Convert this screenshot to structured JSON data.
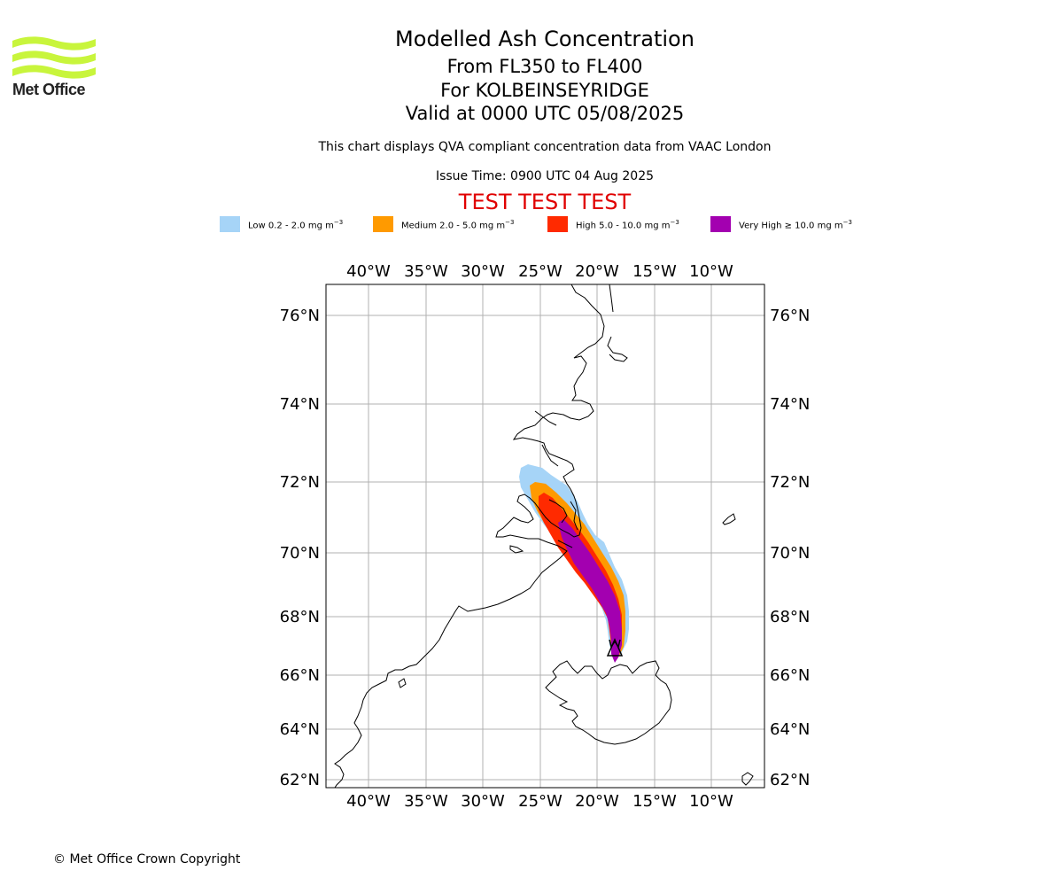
{
  "logo": {
    "text": "Met Office",
    "color": "#c8f53c"
  },
  "title": "Modelled Ash Concentration",
  "subtitle_levels": "From FL350 to FL400",
  "subtitle_location": "For KOLBEINSEYRIDGE",
  "subtitle_valid": "Valid at 0000 UTC 05/08/2025",
  "description": "This chart displays QVA compliant concentration data from VAAC London",
  "issue_time": "Issue Time: 0900 UTC 04 Aug 2025",
  "test_banner": "TEST TEST TEST",
  "legend": [
    {
      "prefix": "Low 0.2 - 2.0 mg m",
      "color": "#a6d4f7"
    },
    {
      "prefix": "Medium 2.0 - 5.0 mg m",
      "color": "#ff9a00"
    },
    {
      "prefix": "High 5.0 - 10.0 mg m",
      "color": "#ff2a00"
    },
    {
      "prefix": "Very High ≥ 10.0 mg m",
      "color": "#a300b0"
    }
  ],
  "legend_unit_exponent": "−3",
  "map": {
    "lon_ticks": [
      "40°W",
      "35°W",
      "30°W",
      "25°W",
      "20°W",
      "15°W",
      "10°W"
    ],
    "lat_ticks": [
      "76°N",
      "74°N",
      "72°N",
      "70°N",
      "68°N",
      "66°N",
      "64°N",
      "62°N"
    ],
    "volcano_symbol": "volcano-triangle"
  },
  "copyright": "© Met Office Crown Copyright"
}
